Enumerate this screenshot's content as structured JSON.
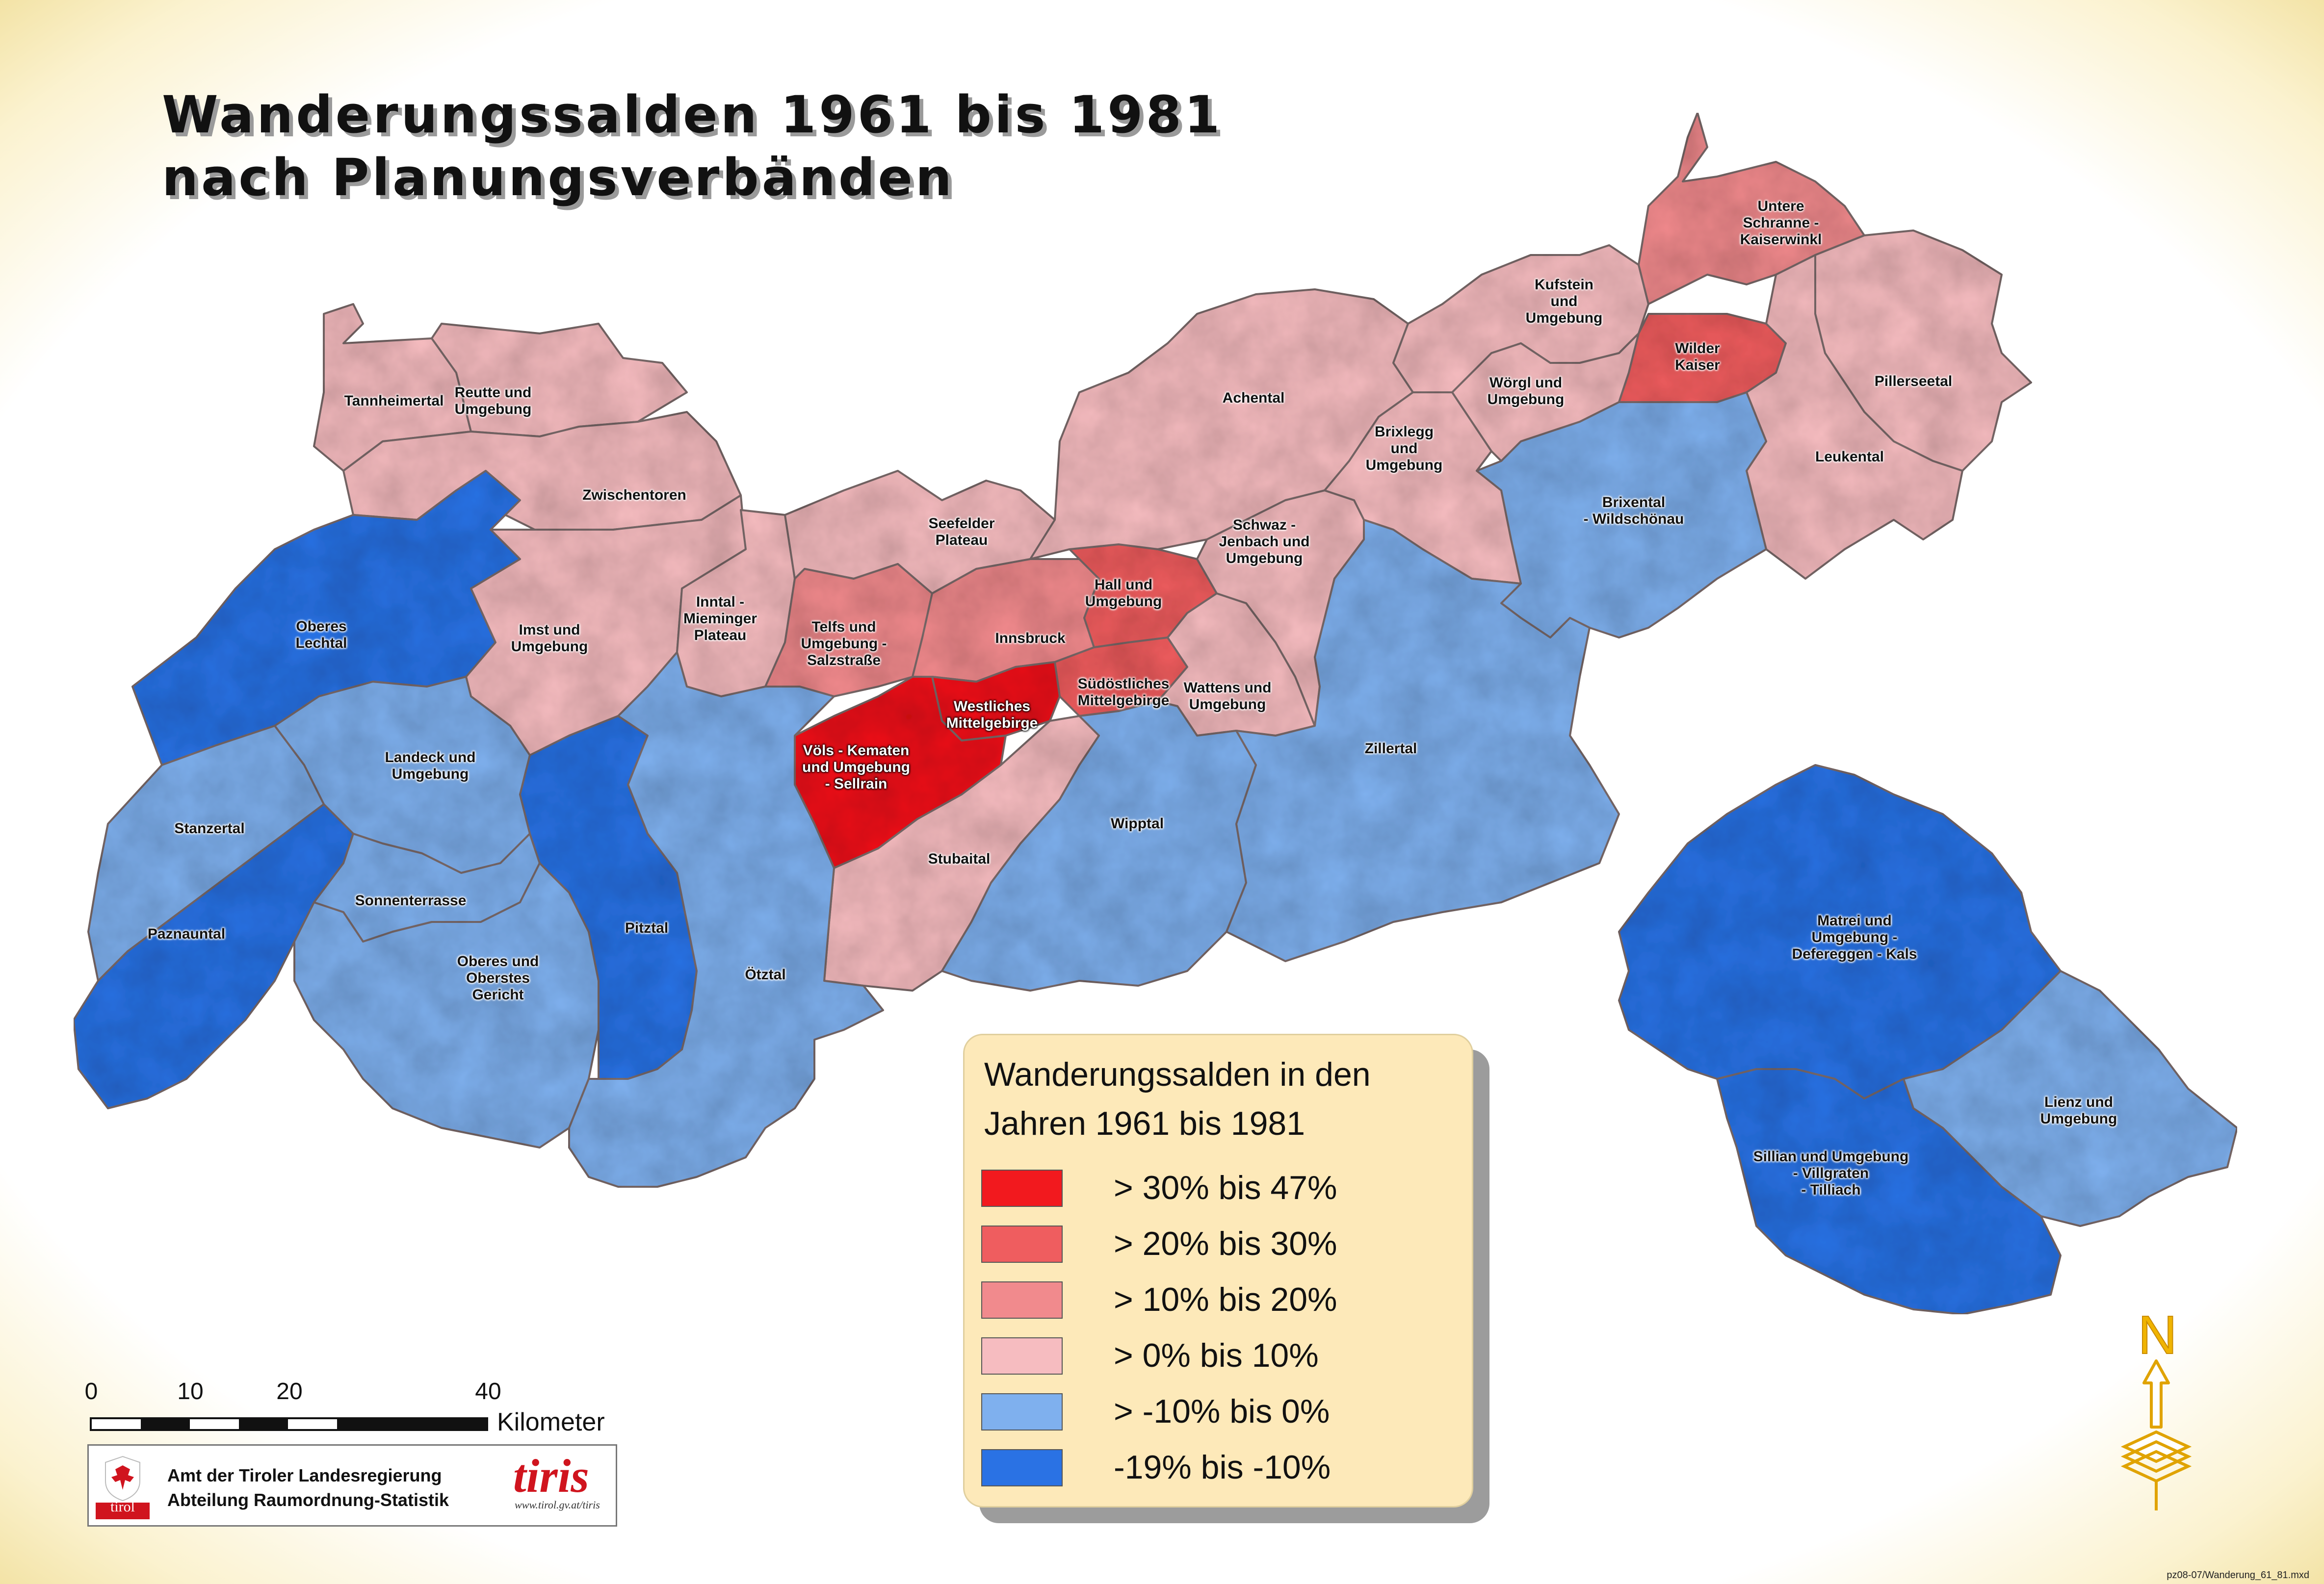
{
  "title": {
    "line1": "Wanderungssalden 1961 bis 1981",
    "line2": "nach Planungsverbänden"
  },
  "colors": {
    "class_30_47": "#f2191e",
    "class_20_30": "#ef5d5f",
    "class_10_20": "#f18a8d",
    "class_0_10": "#f6bcc0",
    "class_m10_0": "#7fb0ee",
    "class_m19_m10": "#2a72e4",
    "legend_background": "#fde9b9"
  },
  "regions": [
    {
      "name": "Tannheimertal",
      "class": "class_0_10"
    },
    {
      "name": "Reutte und\nUmgebung",
      "class": "class_0_10"
    },
    {
      "name": "Zwischentoren",
      "class": "class_0_10"
    },
    {
      "name": "Oberes\nLechtal",
      "class": "class_m19_m10"
    },
    {
      "name": "Imst und\nUmgebung",
      "class": "class_0_10"
    },
    {
      "name": "Inntal -\nMieminger\nPlateau",
      "class": "class_0_10"
    },
    {
      "name": "Seefelder\nPlateau",
      "class": "class_0_10"
    },
    {
      "name": "Telfs und\nUmgebung -\nSalzstraße",
      "class": "class_10_20"
    },
    {
      "name": "Innsbruck",
      "class": "class_10_20"
    },
    {
      "name": "Hall und\nUmgebung",
      "class": "class_20_30"
    },
    {
      "name": "Südöstliches\nMittelgebirge",
      "class": "class_20_30"
    },
    {
      "name": "Westliches\nMittelgebirge",
      "class": "class_30_47"
    },
    {
      "name": "Völs - Kematen\nund Umgebung\n- Sellrain",
      "class": "class_30_47"
    },
    {
      "name": "Wattens und\nUmgebung",
      "class": "class_0_10"
    },
    {
      "name": "Stubaital",
      "class": "class_0_10"
    },
    {
      "name": "Wipptal",
      "class": "class_m10_0"
    },
    {
      "name": "Achental",
      "class": "class_0_10"
    },
    {
      "name": "Schwaz -\nJenbach und\nUmgebung",
      "class": "class_0_10"
    },
    {
      "name": "Brixlegg\nund\nUmgebung",
      "class": "class_0_10"
    },
    {
      "name": "Kufstein\nund\nUmgebung",
      "class": "class_0_10"
    },
    {
      "name": "Untere\nSchranne -\nKaiserwinkl",
      "class": "class_10_20"
    },
    {
      "name": "Wörgl und\nUmgebung",
      "class": "class_0_10"
    },
    {
      "name": "Wilder\nKaiser",
      "class": "class_20_30"
    },
    {
      "name": "Pillerseetal",
      "class": "class_0_10"
    },
    {
      "name": "Leukental",
      "class": "class_0_10"
    },
    {
      "name": "Brixental\n- Wildschönau",
      "class": "class_m10_0"
    },
    {
      "name": "Zillertal",
      "class": "class_m10_0"
    },
    {
      "name": "Landeck und\nUmgebung",
      "class": "class_m10_0"
    },
    {
      "name": "Stanzertal",
      "class": "class_m10_0"
    },
    {
      "name": "Paznauntal",
      "class": "class_m19_m10"
    },
    {
      "name": "Sonnenterrasse",
      "class": "class_m10_0"
    },
    {
      "name": "Oberes und\nOberstes\nGericht",
      "class": "class_m10_0"
    },
    {
      "name": "Pitztal",
      "class": "class_m19_m10"
    },
    {
      "name": "Ötztal",
      "class": "class_m10_0"
    },
    {
      "name": "Matrei und\nUmgebung -\nDefereggen - Kals",
      "class": "class_m19_m10"
    },
    {
      "name": "Lienz und\nUmgebung",
      "class": "class_m10_0"
    },
    {
      "name": "Sillian und Umgebung\n- Villgraten\n- Tilliach",
      "class": "class_m19_m10"
    }
  ],
  "legend": {
    "title": "Wanderungssalden in den\nJahren 1961 bis 1981",
    "items": [
      {
        "label": "> 30% bis 47%",
        "class": "class_30_47"
      },
      {
        "label": "> 20% bis 30%",
        "class": "class_20_30"
      },
      {
        "label": "> 10% bis 20%",
        "class": "class_10_20"
      },
      {
        "label": "> 0% bis 10%",
        "class": "class_0_10"
      },
      {
        "label": "> -10% bis 0%",
        "class": "class_m10_0"
      },
      {
        "label": "-19% bis -10%",
        "class": "class_m19_m10"
      }
    ]
  },
  "scale": {
    "ticks": [
      "0",
      "10",
      "20",
      "40"
    ],
    "unit": "Kilometer"
  },
  "credit": {
    "line1": "Amt der Tiroler Landesregierung",
    "line2": "Abteilung Raumordnung-Statistik",
    "tiris": "tiris",
    "tiris_url": "www.tirol.gv.at/tiris",
    "tirol": "tirol"
  },
  "north": "N",
  "file_ref": "pz08-07/Wanderung_61_81.mxd"
}
